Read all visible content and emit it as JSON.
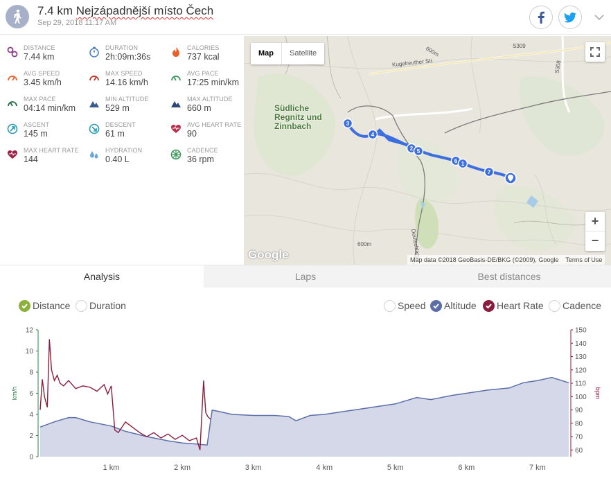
{
  "activity": {
    "distance_title": "7.4 km",
    "place": "Nejzápadnější místo Čech",
    "datetime": "Sep 29, 2018 11:17 AM",
    "icon": "hiking-icon"
  },
  "share": {
    "facebook_icon": "facebook-icon",
    "twitter_icon": "twitter-icon"
  },
  "stats": [
    {
      "key": "distance",
      "label": "DISTANCE",
      "value": "7.44 km",
      "icon": "distance-icon",
      "color": "#8e3b8b"
    },
    {
      "key": "duration",
      "label": "DURATION",
      "value": "2h:09m:36s",
      "icon": "stopwatch-icon",
      "color": "#4a7fc0"
    },
    {
      "key": "calories",
      "label": "CALORIES",
      "value": "737 kcal",
      "icon": "flame-icon",
      "color": "#e8612c"
    },
    {
      "key": "avg_speed",
      "label": "AVG SPEED",
      "value": "3.45 km/h",
      "icon": "speedometer-icon",
      "color": "#e8612c"
    },
    {
      "key": "max_speed",
      "label": "MAX SPEED",
      "value": "14.16 km/h",
      "icon": "speedometer-icon",
      "color": "#c0392b"
    },
    {
      "key": "avg_pace",
      "label": "AVG PACE",
      "value": "17:25 min/km",
      "icon": "pace-icon",
      "color": "#3d9a5c"
    },
    {
      "key": "max_pace",
      "label": "MAX PACE",
      "value": "04:14 min/km",
      "icon": "pace-icon",
      "color": "#256f45"
    },
    {
      "key": "min_altitude",
      "label": "MIN ALTITUDE",
      "value": "529 m",
      "icon": "mountain-icon",
      "color": "#3a5a8c"
    },
    {
      "key": "max_altitude",
      "label": "MAX ALTITUDE",
      "value": "660 m",
      "icon": "mountain-icon",
      "color": "#2c4877"
    },
    {
      "key": "ascent",
      "label": "ASCENT",
      "value": "145 m",
      "icon": "ascent-icon",
      "color": "#2a9ab5"
    },
    {
      "key": "descent",
      "label": "DESCENT",
      "value": "61 m",
      "icon": "descent-icon",
      "color": "#2a9ab5"
    },
    {
      "key": "avg_heart_rate",
      "label": "AVG HEART RATE",
      "value": "90",
      "icon": "heart-rate-icon",
      "color": "#b8304f"
    },
    {
      "key": "max_heart_rate",
      "label": "MAX HEART RATE",
      "value": "144",
      "icon": "heart-rate-icon",
      "color": "#9c1f45"
    },
    {
      "key": "hydration",
      "label": "HYDRATION",
      "value": "0.40 L",
      "icon": "water-drops-icon",
      "color": "#6fa6d8"
    },
    {
      "key": "cadence",
      "label": "CADENCE",
      "value": "36 rpm",
      "icon": "cadence-icon",
      "color": "#3d9a5c"
    }
  ],
  "map": {
    "map_button": "Map",
    "satellite_button": "Satellite",
    "zoom_in": "+",
    "zoom_out": "−",
    "logo": "Google",
    "attribution": "Map data ©2018 GeoBasis-DE/BKG (©2009), Google",
    "terms": "Terms of Use",
    "area_label": "Südliche Regnitz und Zinnbach",
    "road_labels": [
      "Kugelreuther Str.",
      "S309",
      "S308",
      "600m",
      "600m",
      "Deutschland"
    ],
    "waypoints": [
      "3",
      "4",
      "2",
      "5",
      "6",
      "1",
      "7"
    ]
  },
  "tabs": [
    {
      "label": "Analysis",
      "active": true
    },
    {
      "label": "Laps",
      "active": false
    },
    {
      "label": "Best distances",
      "active": false
    }
  ],
  "toggles": {
    "distance": {
      "label": "Distance",
      "checked": true,
      "color": "#8bb13c"
    },
    "duration": {
      "label": "Duration",
      "checked": false
    },
    "speed": {
      "label": "Speed",
      "checked": false
    },
    "altitude": {
      "label": "Altitude",
      "checked": true,
      "color": "#5c6ea8"
    },
    "heart_rate": {
      "label": "Heart Rate",
      "checked": true,
      "color": "#8a1d3d"
    },
    "cadence": {
      "label": "Cadence",
      "checked": false
    }
  },
  "chart_data": {
    "type": "line",
    "x_unit": "km",
    "xlim": [
      0,
      7.44
    ],
    "x_ticks": [
      "1 km",
      "2 km",
      "3 km",
      "4 km",
      "5 km",
      "6 km",
      "7 km"
    ],
    "left_axis": {
      "label": "km/h",
      "ylim": [
        0,
        12
      ],
      "ticks": [
        0,
        2,
        4,
        6,
        8,
        10,
        12
      ],
      "color": "#2e7d4f"
    },
    "right_axis": {
      "label": "bpm",
      "ylim": [
        55,
        150
      ],
      "ticks": [
        60,
        70,
        80,
        90,
        100,
        110,
        120,
        130,
        140,
        150
      ],
      "color": "#8a1d3d"
    },
    "series": [
      {
        "name": "Altitude",
        "kind": "area",
        "color": "#5c6ea8",
        "fill": "#d4d8e8",
        "x": [
          0,
          0.2,
          0.4,
          0.5,
          0.7,
          1.0,
          1.2,
          1.5,
          1.8,
          2.0,
          2.2,
          2.35,
          2.42,
          2.5,
          2.7,
          3.0,
          3.3,
          3.5,
          3.6,
          3.8,
          4.0,
          4.3,
          4.6,
          5.0,
          5.3,
          5.5,
          5.8,
          6.0,
          6.3,
          6.6,
          6.8,
          7.0,
          7.2,
          7.44
        ],
        "y": [
          2.8,
          3.3,
          3.7,
          3.7,
          3.3,
          2.9,
          2.4,
          1.9,
          1.5,
          1.3,
          1.2,
          1.1,
          4.4,
          4.3,
          4.0,
          3.9,
          3.9,
          3.8,
          3.4,
          3.9,
          4.0,
          4.3,
          4.6,
          5.0,
          5.6,
          5.4,
          5.8,
          6.0,
          6.3,
          6.5,
          7.0,
          7.2,
          7.5,
          7.0
        ]
      },
      {
        "name": "Heart Rate",
        "kind": "line",
        "color": "#8a1d3d",
        "x": [
          0,
          0.03,
          0.06,
          0.1,
          0.13,
          0.16,
          0.2,
          0.24,
          0.28,
          0.33,
          0.4,
          0.5,
          0.6,
          0.7,
          0.8,
          0.9,
          0.95,
          1.0,
          1.05,
          1.1,
          1.2,
          1.3,
          1.4,
          1.5,
          1.6,
          1.7,
          1.8,
          1.9,
          2.0,
          2.1,
          2.2,
          2.25,
          2.3,
          2.33,
          2.36,
          2.4
        ],
        "y": [
          90,
          113,
          100,
          92,
          143,
          120,
          112,
          116,
          110,
          108,
          112,
          106,
          108,
          107,
          104,
          109,
          102,
          108,
          75,
          73,
          81,
          77,
          73,
          70,
          73,
          69,
          72,
          68,
          71,
          67,
          69,
          60,
          112,
          88,
          85,
          83
        ]
      }
    ]
  }
}
